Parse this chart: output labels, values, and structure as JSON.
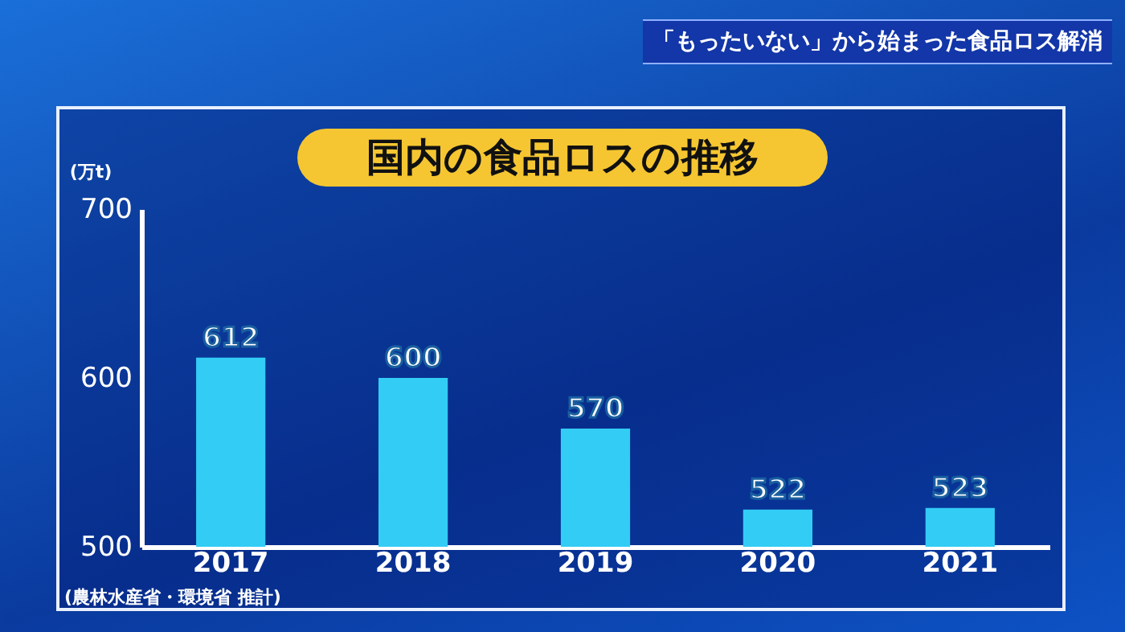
{
  "chart_data": {
    "type": "bar",
    "title": "国内の食品ロスの推移",
    "ylabel": "(万t)",
    "categories": [
      "2017",
      "2018",
      "2019",
      "2020",
      "2021"
    ],
    "values": [
      612,
      600,
      570,
      522,
      523
    ],
    "color": "#33ccf5",
    "ylim": [
      500,
      700
    ],
    "yticks": [
      500,
      600,
      700
    ],
    "data_labels": true,
    "annotations": [
      "「もったいない」から始まった食品ロス解消",
      "(農林水産省・環境省 推計)"
    ]
  }
}
